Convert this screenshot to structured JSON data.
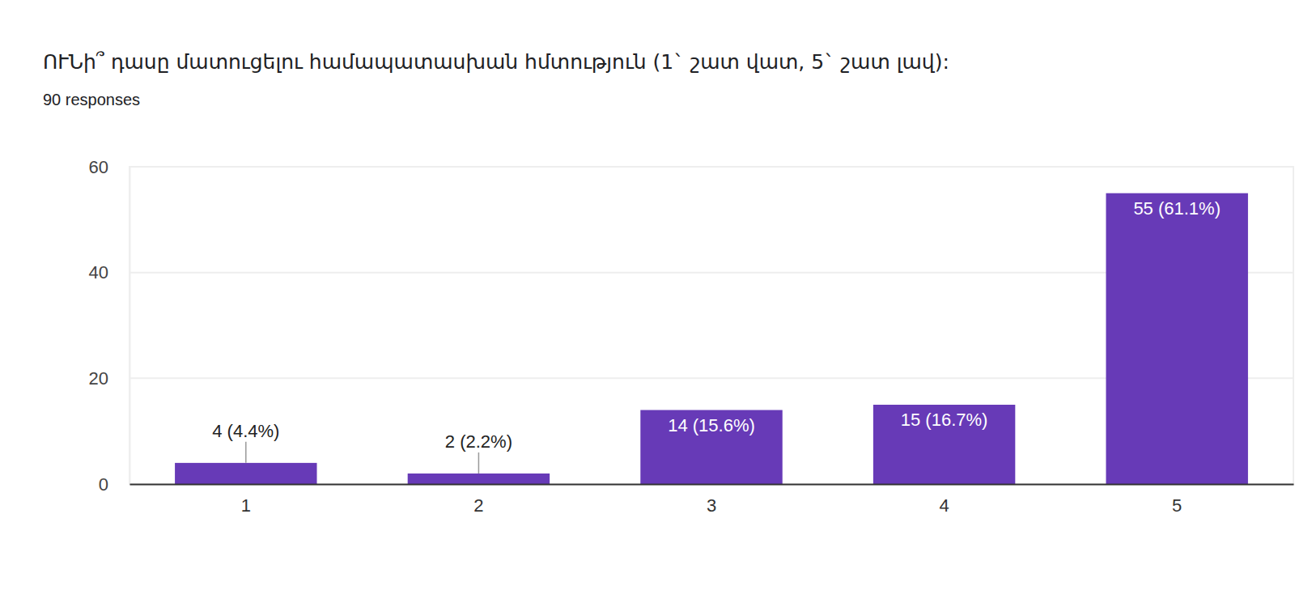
{
  "chart_data": {
    "type": "bar",
    "title": "ՈՒՆի՞ դասը մատուցելու համապատասխան հմտություն  (1` շատ վատ, 5` շատ լավ):",
    "subtitle": "90 responses",
    "categories": [
      "1",
      "2",
      "3",
      "4",
      "5"
    ],
    "values": [
      4,
      2,
      14,
      15,
      55
    ],
    "value_labels": [
      "4 (4.4%)",
      "2 (2.2%)",
      "14 (15.6%)",
      "15 (16.7%)",
      "55 (61.1%)"
    ],
    "color": "#673ab7",
    "ylim": [
      0,
      60
    ],
    "yticks": [
      0,
      20,
      40,
      60
    ],
    "grid": true,
    "data_labels": true
  }
}
